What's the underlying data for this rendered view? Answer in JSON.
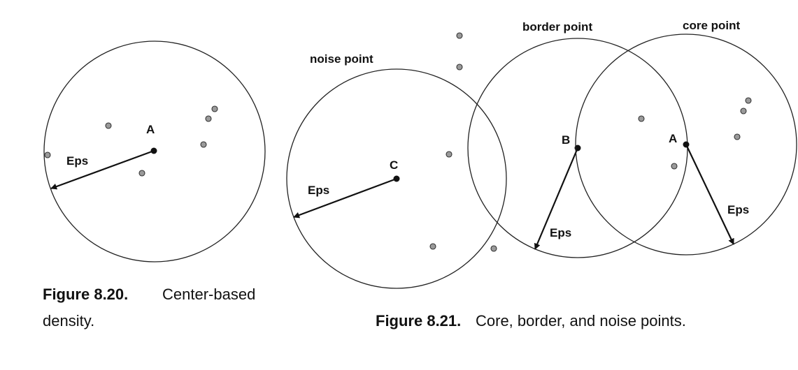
{
  "fig820": {
    "point_label": "A",
    "eps_label": "Eps",
    "caption_num": "Figure 8.20.",
    "caption_line1": "Center-based",
    "caption_line2": "density."
  },
  "fig821": {
    "noise_title": "noise point",
    "border_title": "border point",
    "core_title": "core point",
    "label_c": "C",
    "label_b": "B",
    "label_a": "A",
    "eps_c": "Eps",
    "eps_b": "Eps",
    "eps_a": "Eps",
    "caption_num": "Figure 8.21.",
    "caption_text": "Core, border, and noise points."
  }
}
